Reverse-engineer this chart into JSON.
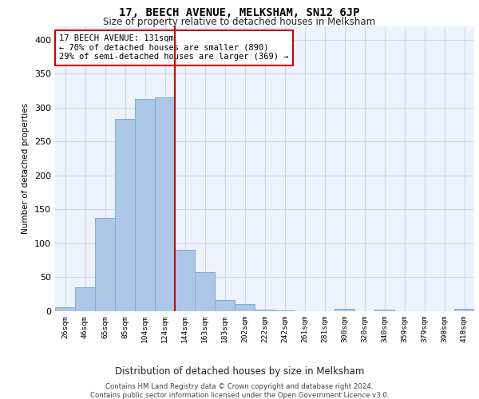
{
  "title": "17, BEECH AVENUE, MELKSHAM, SN12 6JP",
  "subtitle": "Size of property relative to detached houses in Melksham",
  "xlabel": "Distribution of detached houses by size in Melksham",
  "ylabel": "Number of detached properties",
  "bar_labels": [
    "26sqm",
    "46sqm",
    "65sqm",
    "85sqm",
    "104sqm",
    "124sqm",
    "144sqm",
    "163sqm",
    "183sqm",
    "202sqm",
    "222sqm",
    "242sqm",
    "261sqm",
    "281sqm",
    "300sqm",
    "320sqm",
    "340sqm",
    "359sqm",
    "379sqm",
    "398sqm",
    "418sqm"
  ],
  "bar_values": [
    6,
    35,
    137,
    283,
    312,
    315,
    90,
    57,
    17,
    10,
    2,
    1,
    0,
    0,
    3,
    0,
    2,
    0,
    0,
    0,
    3
  ],
  "bar_color": "#aec6e8",
  "bar_edge_color": "#7aafd4",
  "grid_color": "#d0d8e8",
  "background_color": "#eef2fa",
  "property_line_color": "#cc0000",
  "annotation_text": "17 BEECH AVENUE: 131sqm\n← 70% of detached houses are smaller (890)\n29% of semi-detached houses are larger (369) →",
  "annotation_box_color": "#cc0000",
  "ylim": [
    0,
    420
  ],
  "yticks": [
    0,
    50,
    100,
    150,
    200,
    250,
    300,
    350,
    400
  ],
  "footer_text": "Contains HM Land Registry data © Crown copyright and database right 2024.\nContains public sector information licensed under the Open Government Licence v3.0."
}
